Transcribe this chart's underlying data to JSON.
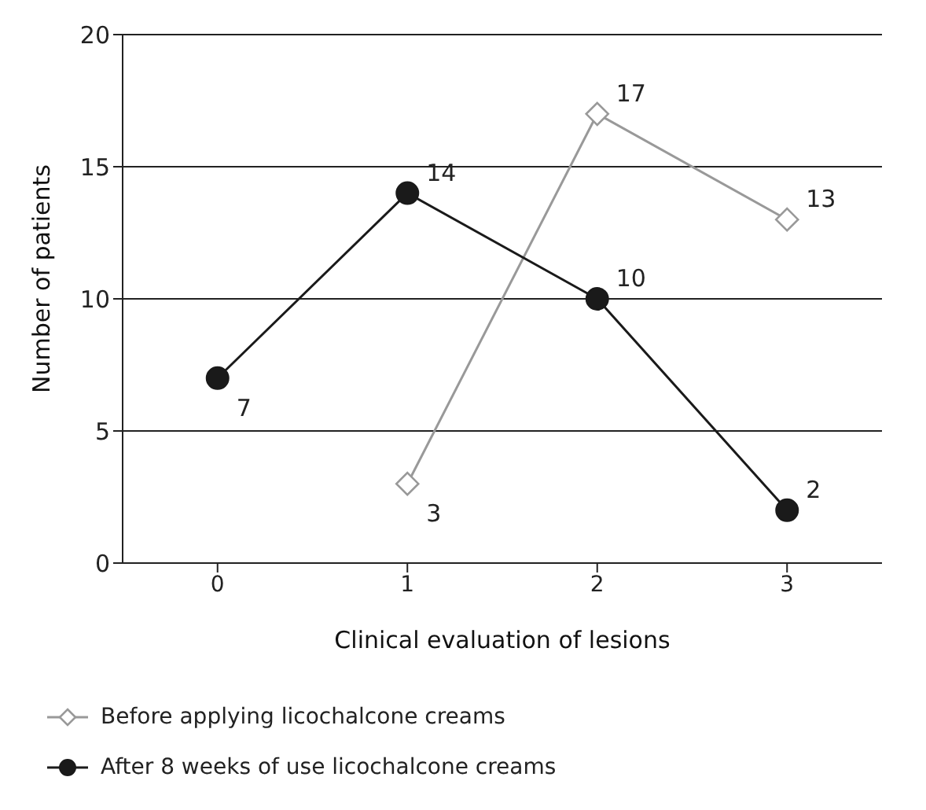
{
  "chart_data": {
    "type": "line",
    "xlabel": "Clinical evaluation of lesions",
    "ylabel": "Number of patients",
    "categories": [
      "0",
      "1",
      "2",
      "3"
    ],
    "series": [
      {
        "name": "Before applying licochalcone creams",
        "color": "#999999",
        "marker": "diamond",
        "values": [
          null,
          3,
          17,
          13
        ]
      },
      {
        "name": "After 8 weeks of use licochalcone creams",
        "color": "#1a1a1a",
        "marker": "circle",
        "values": [
          7,
          14,
          10,
          2
        ]
      }
    ],
    "ylim": [
      0,
      20
    ],
    "yticks": [
      0,
      5,
      10,
      15,
      20
    ],
    "grid": "y",
    "legend": "bottom",
    "data_labels": true
  }
}
